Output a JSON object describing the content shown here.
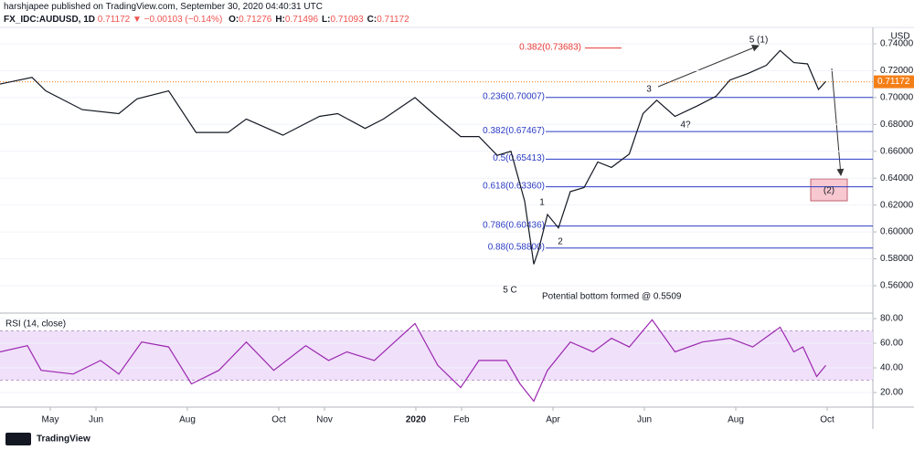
{
  "header": {
    "published": "harshjapee published on TradingView.com, September 30, 2020 04:40:31 UTC",
    "symbol": "FX_IDC:AUDUSD, 1D",
    "quote": "0.71172 ▼ −0.00103 (−0.14%)",
    "ohlc": [
      {
        "label": "O:",
        "value": "0.71276"
      },
      {
        "label": "H:",
        "value": "0.71496"
      },
      {
        "label": "L:",
        "value": "0.71093"
      },
      {
        "label": "C:",
        "value": "0.71172"
      }
    ]
  },
  "chart_data": [
    {
      "type": "line",
      "unit_label": "USD",
      "color": "#131722",
      "x": [
        -1.1,
        -0.4,
        -0.1,
        0.7,
        1.5,
        1.9,
        2.59,
        3.19,
        3.89,
        4.29,
        5.09,
        5.89,
        6.29,
        6.89,
        7.29,
        7.98,
        8.38,
        8.98,
        9.38,
        9.78,
        10.08,
        10.38,
        10.58,
        10.68,
        10.88,
        11.12,
        11.38,
        11.68,
        11.98,
        12.28,
        12.67,
        12.97,
        13.27,
        13.67,
        14.17,
        14.57,
        14.87,
        15.27,
        15.67,
        15.97,
        16.27,
        16.57,
        16.81,
        16.97
      ],
      "values": [
        0.71,
        0.715,
        0.705,
        0.691,
        0.688,
        0.699,
        0.705,
        0.674,
        0.674,
        0.684,
        0.672,
        0.686,
        0.688,
        0.677,
        0.684,
        0.7,
        0.688,
        0.671,
        0.671,
        0.657,
        0.66,
        0.623,
        0.576,
        0.586,
        0.613,
        0.603,
        0.63,
        0.633,
        0.652,
        0.648,
        0.658,
        0.688,
        0.698,
        0.686,
        0.694,
        0.701,
        0.713,
        0.718,
        0.724,
        0.735,
        0.726,
        0.725,
        0.706,
        0.712
      ],
      "xlim": [
        -1.1,
        18
      ],
      "ylim": [
        0.5403,
        0.7522
      ],
      "yticks": [
        {
          "value": 0.56,
          "label": "0.56000"
        },
        {
          "value": 0.58,
          "label": "0.58000"
        },
        {
          "value": 0.6,
          "label": "0.60000"
        },
        {
          "value": 0.62,
          "label": "0.62000"
        },
        {
          "value": 0.64,
          "label": "0.64000"
        },
        {
          "value": 0.66,
          "label": "0.66000"
        },
        {
          "value": 0.68,
          "label": "0.68000"
        },
        {
          "value": 0.7,
          "label": "0.70000"
        },
        {
          "value": 0.72,
          "label": "0.72000"
        },
        {
          "value": 0.74,
          "label": "0.74000"
        }
      ],
      "last_price": 0.71172,
      "last_price_color": "#f57f17",
      "fib_levels": [
        {
          "value": 0.73683,
          "label": "0.382(0.73683)",
          "color": "#e53935"
        },
        {
          "value": 0.70007,
          "label": "0.236(0.70007)",
          "color": "#2b3bc4"
        },
        {
          "value": 0.67467,
          "label": "0.382(0.67467)",
          "color": "#2b3bc4"
        },
        {
          "value": 0.65413,
          "label": "0.5(0.65413)",
          "color": "#2b3bc4"
        },
        {
          "value": 0.6336,
          "label": "0.618(0.63360)",
          "color": "#2b3bc4"
        },
        {
          "value": 0.60436,
          "label": "0.786(0.60436)",
          "color": "#2b3bc4"
        },
        {
          "value": 0.588,
          "label": "0.88(0.58800)",
          "color": "#2b3bc4"
        }
      ],
      "annotations": [
        "5 (1)",
        "3",
        "4?",
        "1",
        "2",
        "5 C",
        "Potential bottom formed @ 0.5509",
        "(2)"
      ]
    },
    {
      "type": "line",
      "title": "RSI (14, close)",
      "color": "#9c27b0",
      "band": [
        30,
        70
      ],
      "band_color": "#f0e0fa",
      "x": [
        -1.1,
        -0.5,
        -0.2,
        0.5,
        1.1,
        1.5,
        2.0,
        2.59,
        3.09,
        3.69,
        4.29,
        4.89,
        5.59,
        6.09,
        6.49,
        7.09,
        7.98,
        8.48,
        8.98,
        9.38,
        9.98,
        10.28,
        10.58,
        10.88,
        11.38,
        11.88,
        12.28,
        12.67,
        13.17,
        13.67,
        14.27,
        14.87,
        15.37,
        15.97,
        16.27,
        16.47,
        16.77,
        16.97
      ],
      "values": [
        53,
        58,
        38,
        35,
        46,
        35,
        61,
        57,
        27,
        38,
        61,
        38,
        58,
        46,
        53,
        46,
        76,
        42,
        24,
        46,
        46,
        27,
        13,
        38,
        61,
        53,
        64,
        57,
        79,
        53,
        61,
        64,
        57,
        73,
        53,
        57,
        33,
        42
      ],
      "xlim": [
        -1.1,
        18
      ],
      "ylim": [
        8.9,
        83
      ],
      "yticks": [
        {
          "value": 20,
          "label": "20.00"
        },
        {
          "value": 40,
          "label": "40.00"
        },
        {
          "value": 60,
          "label": "60.00"
        },
        {
          "value": 80,
          "label": "80.00"
        }
      ],
      "xticks": [
        {
          "value": 0,
          "label": "May"
        },
        {
          "value": 1,
          "label": "Jun"
        },
        {
          "value": 3,
          "label": "Aug"
        },
        {
          "value": 5,
          "label": "Oct"
        },
        {
          "value": 6,
          "label": "Nov"
        },
        {
          "value": 8,
          "label": "2020"
        },
        {
          "value": 9,
          "label": "Feb"
        },
        {
          "value": 11,
          "label": "Apr"
        },
        {
          "value": 13,
          "label": "Jun"
        },
        {
          "value": 15,
          "label": "Aug"
        },
        {
          "value": 17,
          "label": "Oct"
        }
      ]
    }
  ],
  "footer": {
    "brand": "TradingView"
  }
}
